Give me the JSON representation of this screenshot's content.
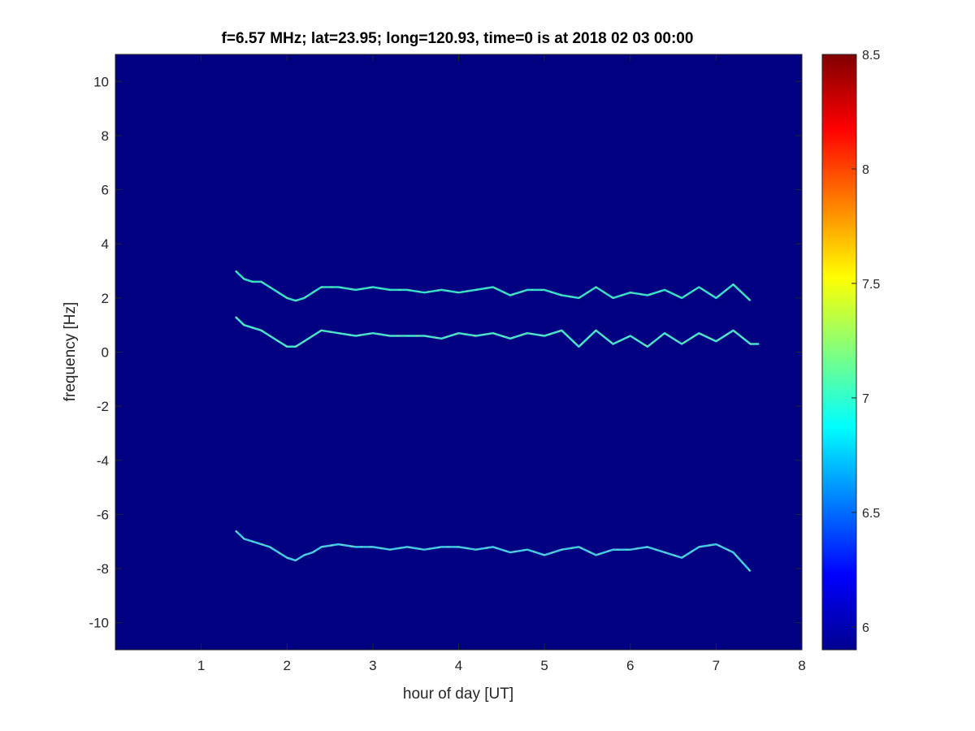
{
  "chart_data": {
    "type": "heatmap",
    "title": "f=6.57 MHz;  lat=23.95; long=120.93, time=0 is at 2018 02 03 00:00",
    "xlabel": "hour of day [UT]",
    "ylabel": "frequency [Hz]",
    "xlim": [
      0,
      8
    ],
    "ylim": [
      -11,
      11
    ],
    "xticks": [
      "1",
      "2",
      "3",
      "4",
      "5",
      "6",
      "7",
      "8"
    ],
    "yticks": [
      "10",
      "8",
      "6",
      "4",
      "2",
      "0",
      "-2",
      "-4",
      "-6",
      "-8",
      "-10"
    ],
    "background_color": "#000080",
    "colormap": "jet",
    "colorbar": {
      "range": [
        5.9,
        8.5
      ],
      "ticks": [
        "8.5",
        "8",
        "7.5",
        "7",
        "6.5",
        "6"
      ]
    },
    "grid": false,
    "series": [
      {
        "x": [
          1.4,
          1.5,
          1.6,
          1.7,
          1.8,
          1.9,
          2.0,
          2.1,
          2.2,
          2.3,
          2.4,
          2.6,
          2.8,
          3.0,
          3.2,
          3.4,
          3.6,
          3.8,
          4.0,
          4.2,
          4.4,
          4.6,
          4.8,
          5.0,
          5.2,
          5.4,
          5.6,
          5.8,
          6.0,
          6.2,
          6.4,
          6.6,
          6.8,
          7.0,
          7.2,
          7.4
        ],
        "y": [
          3.0,
          2.7,
          2.6,
          2.6,
          2.4,
          2.2,
          2.0,
          1.9,
          2.0,
          2.2,
          2.4,
          2.4,
          2.3,
          2.4,
          2.3,
          2.3,
          2.2,
          2.3,
          2.2,
          2.3,
          2.4,
          2.1,
          2.3,
          2.3,
          2.1,
          2.0,
          2.4,
          2.0,
          2.2,
          2.1,
          2.3,
          2.0,
          2.4,
          2.0,
          2.5,
          1.9
        ]
      },
      {
        "x": [
          1.4,
          1.5,
          1.6,
          1.7,
          1.8,
          1.9,
          2.0,
          2.1,
          2.2,
          2.3,
          2.4,
          2.6,
          2.8,
          3.0,
          3.2,
          3.4,
          3.6,
          3.8,
          4.0,
          4.2,
          4.4,
          4.6,
          4.8,
          5.0,
          5.2,
          5.4,
          5.6,
          5.8,
          6.0,
          6.2,
          6.4,
          6.6,
          6.8,
          7.0,
          7.2,
          7.4,
          7.5
        ],
        "y": [
          1.3,
          1.0,
          0.9,
          0.8,
          0.6,
          0.4,
          0.2,
          0.2,
          0.4,
          0.6,
          0.8,
          0.7,
          0.6,
          0.7,
          0.6,
          0.6,
          0.6,
          0.5,
          0.7,
          0.6,
          0.7,
          0.5,
          0.7,
          0.6,
          0.8,
          0.2,
          0.8,
          0.3,
          0.6,
          0.2,
          0.7,
          0.3,
          0.7,
          0.4,
          0.8,
          0.3,
          0.3
        ]
      },
      {
        "x": [
          1.4,
          1.5,
          1.6,
          1.7,
          1.8,
          1.9,
          2.0,
          2.1,
          2.2,
          2.3,
          2.4,
          2.6,
          2.8,
          3.0,
          3.2,
          3.4,
          3.6,
          3.8,
          4.0,
          4.2,
          4.4,
          4.6,
          4.8,
          5.0,
          5.2,
          5.4,
          5.6,
          5.8,
          6.0,
          6.2,
          6.4,
          6.6,
          6.8,
          7.0,
          7.2,
          7.4
        ],
        "y": [
          -6.6,
          -6.9,
          -7.0,
          -7.1,
          -7.2,
          -7.4,
          -7.6,
          -7.7,
          -7.5,
          -7.4,
          -7.2,
          -7.1,
          -7.2,
          -7.2,
          -7.3,
          -7.2,
          -7.3,
          -7.2,
          -7.2,
          -7.3,
          -7.2,
          -7.4,
          -7.3,
          -7.5,
          -7.3,
          -7.2,
          -7.5,
          -7.3,
          -7.3,
          -7.2,
          -7.4,
          -7.6,
          -7.2,
          -7.1,
          -7.4,
          -8.1
        ]
      }
    ]
  }
}
